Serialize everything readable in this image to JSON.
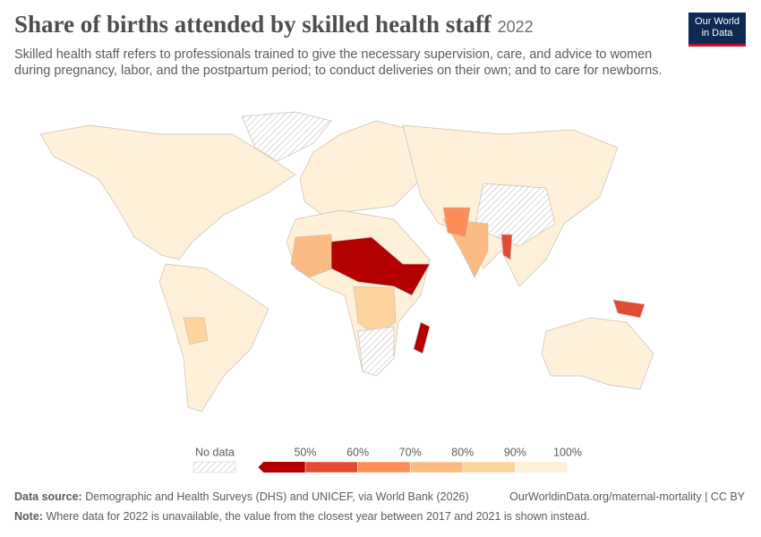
{
  "header": {
    "title": "Share of births attended by skilled health staff",
    "year": "2022",
    "subtitle": "Skilled health staff refers to professionals trained to give the necessary supervision, care, and advice to women during pregnancy, labor, and the postpartum period; to conduct deliveries on their own; and to care for newborns.",
    "logo": [
      "Our World",
      "in Data"
    ]
  },
  "legend": {
    "no_data": "No data",
    "ticks": [
      "50%",
      "60%",
      "70%",
      "80%",
      "90%",
      "100%"
    ],
    "colors": [
      "#b30000",
      "#e34a33",
      "#fc8d59",
      "#fdbb84",
      "#fdd49e",
      "#fef0d9"
    ]
  },
  "footer": {
    "source_label": "Data source:",
    "source": "Demographic and Health Surveys (DHS) and UNICEF, via World Bank (2026)",
    "url": "OurWorldinData.org/maternal-mortality | CC BY",
    "note_label": "Note:",
    "note": "Where data for 2022 is unavailable, the value from the closest year between 2017 and 2021 is shown instead."
  }
}
